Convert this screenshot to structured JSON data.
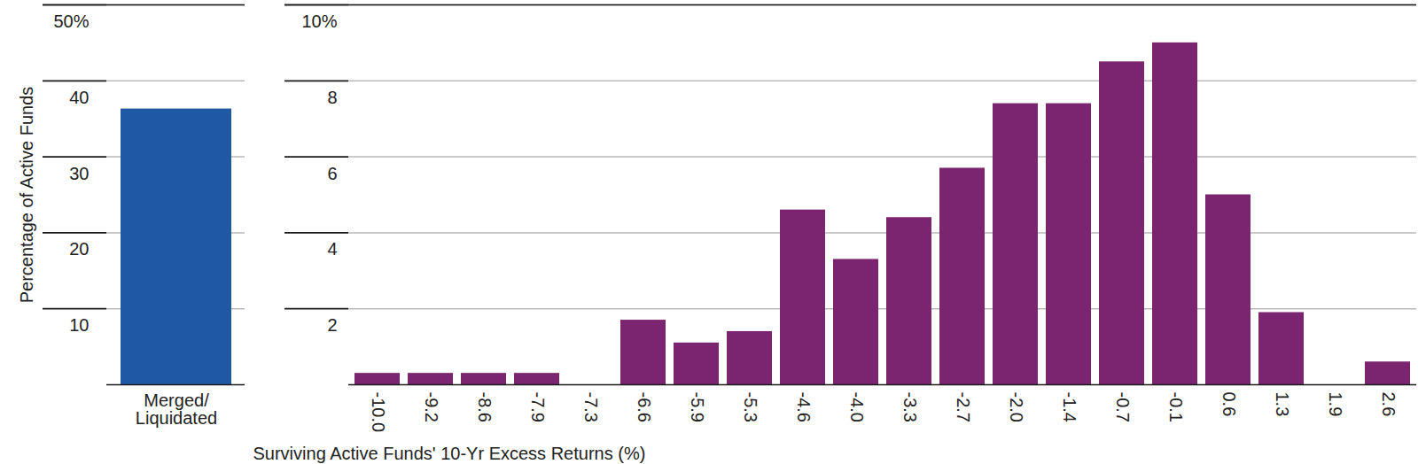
{
  "chart_data": [
    {
      "type": "bar",
      "y_label": "Percentage of Active Funds",
      "categories": [
        "Merged/\nLiquidated"
      ],
      "values": [
        36.3
      ],
      "color": "#1f58a5",
      "ylim": [
        0,
        50
      ],
      "yticks": [
        10,
        20,
        30,
        40,
        {
          "value": 50,
          "label": "50%"
        }
      ],
      "grid": true
    },
    {
      "type": "bar",
      "x_label": "Surviving Active Funds' 10-Yr Excess Returns (%)",
      "categories": [
        "-10.0",
        "-9.2",
        "-8.6",
        "-7.9",
        "-7.3",
        "-6.6",
        "-5.9",
        "-5.3",
        "-4.6",
        "-4.0",
        "-3.3",
        "-2.7",
        "-2.0",
        "-1.4",
        "-0.7",
        "-0.1",
        "0.6",
        "1.3",
        "1.9",
        "2.6"
      ],
      "values": [
        0.3,
        0.3,
        0.3,
        0.3,
        0,
        1.7,
        1.1,
        1.4,
        4.6,
        3.3,
        4.4,
        5.7,
        7.4,
        7.4,
        8.5,
        9.0,
        5.0,
        1.9,
        0,
        0.6
      ],
      "color": "#7b2570",
      "ylim": [
        0,
        10
      ],
      "yticks": [
        2,
        4,
        6,
        8,
        {
          "value": 10,
          "label": "10%"
        }
      ],
      "grid": true
    }
  ]
}
